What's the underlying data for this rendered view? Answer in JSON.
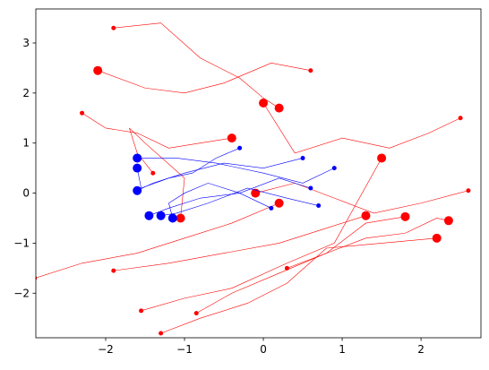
{
  "chart_data": {
    "type": "random-walk",
    "xlim": [
      -2.886,
      2.76
    ],
    "ylim": [
      -2.89,
      3.68
    ],
    "xticks": [
      {
        "value": -2,
        "label": "−2"
      },
      {
        "value": -1,
        "label": "−1"
      },
      0,
      1,
      2
    ],
    "yticks": [
      {
        "value": -2,
        "label": "−2"
      },
      {
        "value": -1,
        "label": "−1"
      },
      0,
      1,
      2,
      3
    ],
    "grid": false,
    "series": [
      {
        "color": "red",
        "x": [
          -1.9,
          -1.3,
          -0.8,
          -0.3,
          0.0,
          0.2
        ],
        "y": [
          3.3,
          3.4,
          2.7,
          2.3,
          1.9,
          1.7
        ]
      },
      {
        "color": "red",
        "x": [
          2.5,
          2.1,
          1.6,
          1.0,
          0.4,
          0.0
        ],
        "y": [
          1.5,
          1.2,
          0.9,
          1.1,
          0.8,
          1.8
        ]
      },
      {
        "color": "red",
        "x": [
          0.6,
          0.1,
          -0.5,
          -1.0,
          -1.5,
          -2.1
        ],
        "y": [
          2.45,
          2.6,
          2.2,
          2.0,
          2.1,
          2.45
        ]
      },
      {
        "color": "red",
        "x": [
          -2.3,
          -2.0,
          -1.6,
          -1.2,
          -0.8,
          -0.4
        ],
        "y": [
          1.6,
          1.3,
          1.2,
          0.9,
          1.0,
          1.1
        ]
      },
      {
        "color": "red",
        "x": [
          2.6,
          2.0,
          1.4,
          0.9,
          0.4,
          -0.1
        ],
        "y": [
          0.05,
          -0.2,
          -0.4,
          -0.1,
          0.2,
          0.0
        ]
      },
      {
        "color": "red",
        "x": [
          -2.9,
          -2.3,
          -1.6,
          -1.0,
          -0.4,
          0.2
        ],
        "y": [
          -1.7,
          -1.4,
          -1.2,
          -0.9,
          -0.6,
          -0.2
        ]
      },
      {
        "color": "red",
        "x": [
          -1.9,
          -1.2,
          -0.5,
          0.2,
          0.8,
          1.3
        ],
        "y": [
          -1.55,
          -1.4,
          -1.2,
          -1.0,
          -0.7,
          -0.45
        ]
      },
      {
        "color": "red",
        "x": [
          0.3,
          0.8,
          1.3,
          1.8,
          2.2,
          2.35
        ],
        "y": [
          -1.5,
          -1.2,
          -0.9,
          -0.8,
          -0.5,
          -0.55
        ]
      },
      {
        "color": "red",
        "x": [
          -1.55,
          -1.0,
          -0.4,
          0.3,
          0.9,
          1.5
        ],
        "y": [
          -2.35,
          -2.1,
          -1.9,
          -1.4,
          -1.0,
          0.7
        ]
      },
      {
        "color": "red",
        "x": [
          -1.3,
          -0.8,
          -0.2,
          0.3,
          0.8,
          2.2
        ],
        "y": [
          -2.8,
          -2.5,
          -2.2,
          -1.8,
          -1.1,
          -0.9
        ]
      },
      {
        "color": "red",
        "x": [
          -0.85,
          -0.4,
          0.2,
          0.8,
          1.3,
          1.8
        ],
        "y": [
          -2.4,
          -2.0,
          -1.6,
          -1.2,
          -0.6,
          -0.47
        ]
      },
      {
        "color": "red",
        "x": [
          -1.4,
          -1.6,
          -1.7,
          -1.5,
          -1.0,
          -1.05
        ],
        "y": [
          0.4,
          0.8,
          1.3,
          1.0,
          0.3,
          -0.5
        ]
      },
      {
        "color": "blue",
        "x": [
          0.5,
          0.0,
          -0.5,
          -1.0,
          -1.4,
          -1.6
        ],
        "y": [
          0.7,
          0.5,
          0.6,
          0.4,
          0.2,
          0.05
        ]
      },
      {
        "color": "blue",
        "x": [
          0.6,
          0.2,
          -0.3,
          -0.8,
          -1.2,
          -1.45
        ],
        "y": [
          0.1,
          0.3,
          0.0,
          -0.1,
          -0.3,
          -0.45
        ]
      },
      {
        "color": "blue",
        "x": [
          0.9,
          0.5,
          0.0,
          -0.6,
          -1.1,
          -1.6
        ],
        "y": [
          0.5,
          0.2,
          0.4,
          0.6,
          0.7,
          0.7
        ]
      },
      {
        "color": "blue",
        "x": [
          0.7,
          0.3,
          -0.2,
          -0.7,
          -1.1,
          -1.3
        ],
        "y": [
          -0.25,
          -0.1,
          0.1,
          -0.2,
          -0.4,
          -0.45
        ]
      },
      {
        "color": "blue",
        "x": [
          0.1,
          -0.3,
          -0.7,
          -1.0,
          -1.2,
          -1.15
        ],
        "y": [
          -0.3,
          0.0,
          0.2,
          0.0,
          -0.2,
          -0.5
        ]
      },
      {
        "color": "blue",
        "x": [
          -0.3,
          -0.6,
          -0.9,
          -1.2,
          -1.55,
          -1.6
        ],
        "y": [
          0.9,
          0.7,
          0.4,
          0.3,
          0.1,
          0.5
        ]
      }
    ]
  }
}
